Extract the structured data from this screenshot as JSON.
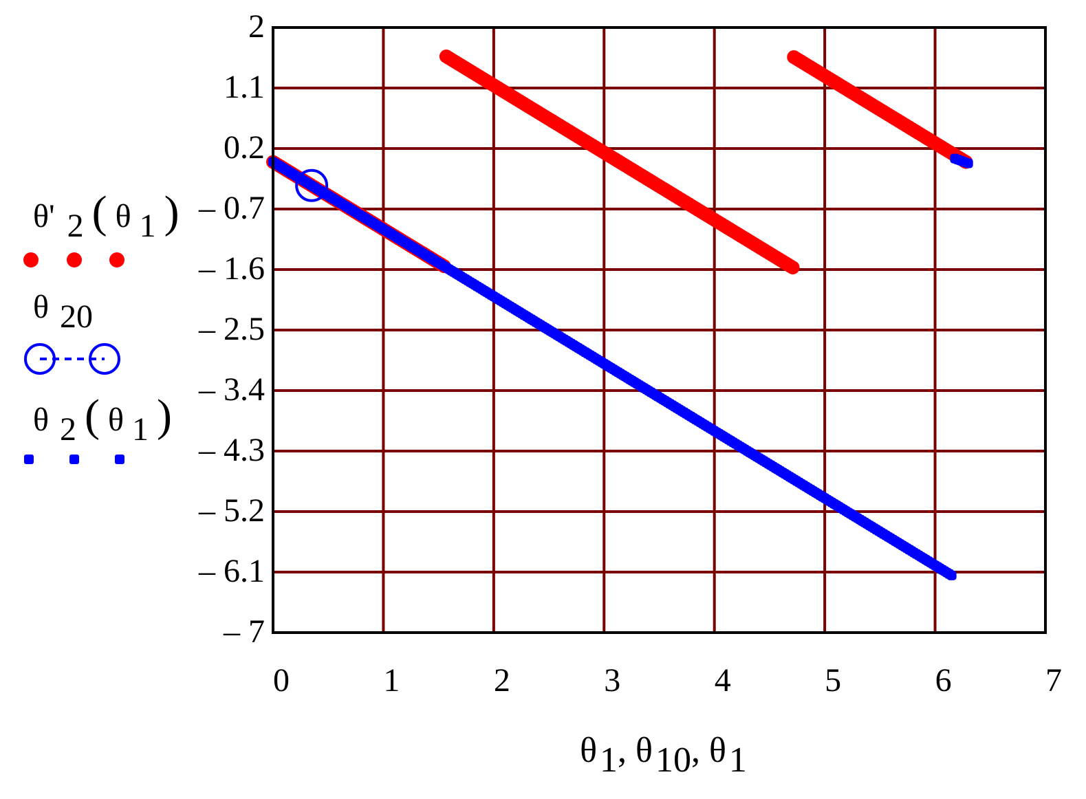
{
  "chart_data": {
    "type": "scatter",
    "xlim": [
      0,
      7
    ],
    "ylim": [
      -7,
      2
    ],
    "x_ticks": [
      "0",
      "1",
      "2",
      "3",
      "4",
      "5",
      "6",
      "7"
    ],
    "y_ticks": [
      "2",
      "1.1",
      "0.2",
      "– 0.7",
      "– 1.6",
      "– 2.5",
      "– 3.4",
      "– 4.3",
      "– 5.2",
      "– 6.1",
      "– 7"
    ],
    "y_tick_values": [
      2,
      1.1,
      0.2,
      -0.7,
      -1.6,
      -2.5,
      -3.4,
      -4.3,
      -5.2,
      -6.1,
      -7
    ],
    "grid": true,
    "grid_color": "#7a0000",
    "xlabel": {
      "parts": [
        {
          "sym": "θ",
          "sub": "1",
          "sep": ", "
        },
        {
          "sym": "θ",
          "sub": "10",
          "sep": ", "
        },
        {
          "sym": "θ",
          "sub": "1",
          "sep": ""
        }
      ]
    },
    "legend_position": "left",
    "series": [
      {
        "key": "theta_prime_2",
        "legend": {
          "sym": "θ'",
          "sub": "2",
          "arg_sym": "θ",
          "arg_sub": "1"
        },
        "color": "#ff0000",
        "marker": "filled-circle",
        "segments": [
          {
            "x": [
              0.0,
              1.55
            ],
            "y": [
              0.0,
              -1.55
            ]
          },
          {
            "x": [
              1.57,
              4.71
            ],
            "y": [
              1.57,
              -1.57
            ]
          },
          {
            "x": [
              4.72,
              6.28
            ],
            "y": [
              1.56,
              0.0
            ]
          }
        ]
      },
      {
        "key": "theta_20",
        "legend": {
          "sym": "θ",
          "sub": "20"
        },
        "color": "#0000ff",
        "marker": "open-circle",
        "points": [
          {
            "x": 0.35,
            "y": -0.35
          }
        ]
      },
      {
        "key": "theta_2",
        "legend": {
          "sym": "θ",
          "sub": "2",
          "arg_sym": "θ",
          "arg_sub": "1"
        },
        "color": "#0000ff",
        "marker": "filled-square",
        "segments": [
          {
            "x": [
              0.0,
              6.15
            ],
            "y": [
              0.0,
              -6.15
            ]
          },
          {
            "x": [
              6.18,
              6.3
            ],
            "y": [
              0.05,
              -0.02
            ]
          }
        ]
      }
    ]
  }
}
